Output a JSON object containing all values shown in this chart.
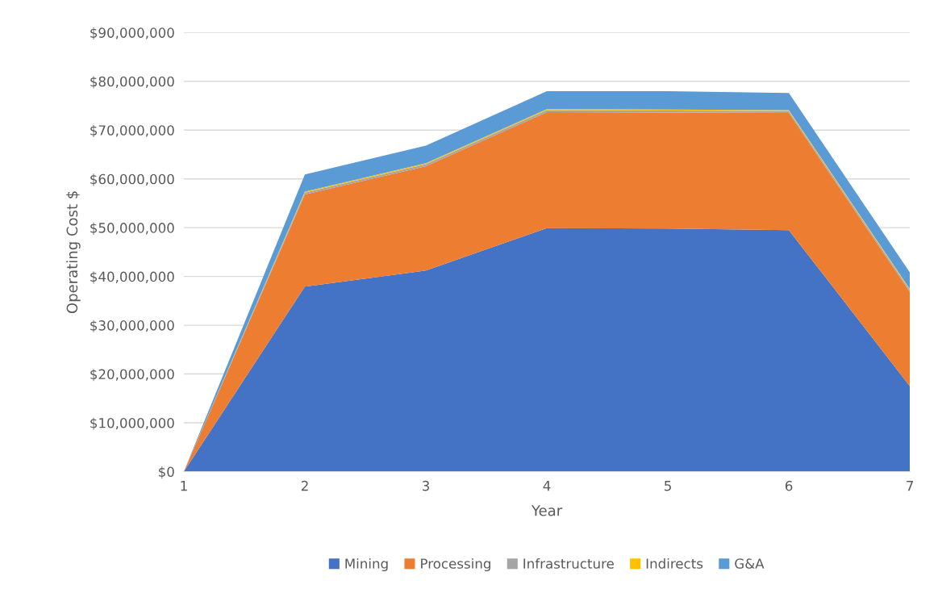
{
  "chart_data": {
    "type": "area",
    "stacked": true,
    "xlabel": "Year",
    "ylabel": "Operating Cost $",
    "x": [
      1,
      2,
      3,
      4,
      5,
      6,
      7
    ],
    "series": [
      {
        "name": "Mining",
        "color": "#4472c4",
        "values": [
          0,
          37900000,
          41200000,
          49900000,
          49800000,
          49500000,
          17500000
        ]
      },
      {
        "name": "Processing",
        "color": "#ed7d31",
        "values": [
          0,
          18900000,
          21400000,
          23800000,
          23800000,
          24000000,
          19300000
        ]
      },
      {
        "name": "Infrastructure",
        "color": "#a5a5a5",
        "values": [
          0,
          400000,
          400000,
          400000,
          400000,
          400000,
          400000
        ]
      },
      {
        "name": "Indirects",
        "color": "#ffc000",
        "values": [
          0,
          200000,
          200000,
          200000,
          200000,
          200000,
          200000
        ]
      },
      {
        "name": "G&A",
        "color": "#5b9bd5",
        "values": [
          0,
          3500000,
          3600000,
          3700000,
          3800000,
          3500000,
          3400000
        ]
      }
    ],
    "xlim": [
      1,
      7
    ],
    "xticks": [
      1,
      2,
      3,
      4,
      5,
      6,
      7
    ],
    "ylim": [
      0,
      90000000
    ],
    "yticks": [
      {
        "value": 0,
        "label": "$0"
      },
      {
        "value": 10000000,
        "label": "$10,000,000"
      },
      {
        "value": 20000000,
        "label": "$20,000,000"
      },
      {
        "value": 30000000,
        "label": "$30,000,000"
      },
      {
        "value": 40000000,
        "label": "$40,000,000"
      },
      {
        "value": 50000000,
        "label": "$50,000,000"
      },
      {
        "value": 60000000,
        "label": "$60,000,000"
      },
      {
        "value": 70000000,
        "label": "$70,000,000"
      },
      {
        "value": 80000000,
        "label": "$80,000,000"
      },
      {
        "value": 90000000,
        "label": "$90,000,000"
      }
    ],
    "grid": "y",
    "legend": "bottom"
  }
}
